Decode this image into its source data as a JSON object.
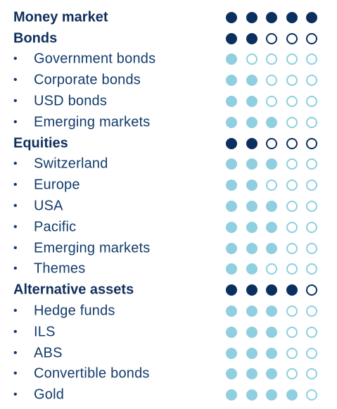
{
  "colors": {
    "category_dot": "#0b2f5f",
    "sub_dot": "#8fcfe0",
    "category_text": "#0f2f5c",
    "sub_text": "#123b6b"
  },
  "max_rating": 5,
  "bullet": "•",
  "rows": [
    {
      "type": "category",
      "label": "Money market",
      "rating": 5
    },
    {
      "type": "category",
      "label": "Bonds",
      "rating": 2
    },
    {
      "type": "sub",
      "label": "Government bonds",
      "rating": 1
    },
    {
      "type": "sub",
      "label": "Corporate bonds",
      "rating": 2
    },
    {
      "type": "sub",
      "label": "USD bonds",
      "rating": 2
    },
    {
      "type": "sub",
      "label": "Emerging markets",
      "rating": 3
    },
    {
      "type": "category",
      "label": "Equities",
      "rating": 2
    },
    {
      "type": "sub",
      "label": "Switzerland",
      "rating": 3
    },
    {
      "type": "sub",
      "label": "Europe",
      "rating": 2
    },
    {
      "type": "sub",
      "label": "USA",
      "rating": 3
    },
    {
      "type": "sub",
      "label": "Pacific",
      "rating": 3
    },
    {
      "type": "sub",
      "label": "Emerging markets",
      "rating": 3
    },
    {
      "type": "sub",
      "label": "Themes",
      "rating": 2
    },
    {
      "type": "category",
      "label": "Alternative assets",
      "rating": 4
    },
    {
      "type": "sub",
      "label": "Hedge funds",
      "rating": 3
    },
    {
      "type": "sub",
      "label": "ILS",
      "rating": 3
    },
    {
      "type": "sub",
      "label": "ABS",
      "rating": 3
    },
    {
      "type": "sub",
      "label": "Convertible bonds",
      "rating": 3
    },
    {
      "type": "sub",
      "label": "Gold",
      "rating": 4
    }
  ]
}
